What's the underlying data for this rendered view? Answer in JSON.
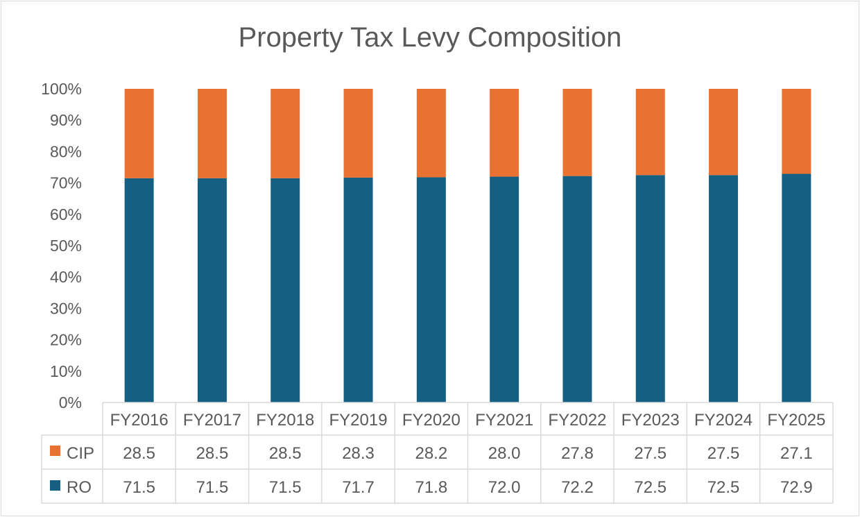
{
  "chart_data": {
    "type": "bar",
    "stacked": "percent",
    "title": "Property Tax Levy Composition",
    "categories": [
      "FY2016",
      "FY2017",
      "FY2018",
      "FY2019",
      "FY2020",
      "FY2021",
      "FY2022",
      "FY2023",
      "FY2024",
      "FY2025"
    ],
    "series": [
      {
        "name": "CIP",
        "color": "#E97132",
        "values": [
          28.5,
          28.5,
          28.5,
          28.3,
          28.2,
          28.0,
          27.8,
          27.5,
          27.5,
          27.1
        ]
      },
      {
        "name": "RO",
        "color": "#156082",
        "values": [
          71.5,
          71.5,
          71.5,
          71.7,
          71.8,
          72.0,
          72.2,
          72.5,
          72.5,
          72.9
        ]
      }
    ],
    "ylim": [
      0,
      100
    ],
    "yticks": [
      "0%",
      "10%",
      "20%",
      "30%",
      "40%",
      "50%",
      "60%",
      "70%",
      "80%",
      "90%",
      "100%"
    ],
    "grid": false,
    "legend": "data-table",
    "value_labels": {
      "CIP": [
        "28.5",
        "28.5",
        "28.5",
        "28.3",
        "28.2",
        "28.0",
        "27.8",
        "27.5",
        "27.5",
        "27.1"
      ],
      "RO": [
        "71.5",
        "71.5",
        "71.5",
        "71.7",
        "71.8",
        "72.0",
        "72.2",
        "72.5",
        "72.5",
        "72.9"
      ]
    }
  }
}
